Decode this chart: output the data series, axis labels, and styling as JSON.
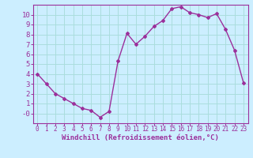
{
  "x": [
    0,
    1,
    2,
    3,
    4,
    5,
    6,
    7,
    8,
    9,
    10,
    11,
    12,
    13,
    14,
    15,
    16,
    17,
    18,
    19,
    20,
    21,
    22,
    23
  ],
  "y": [
    4.0,
    3.0,
    2.0,
    1.5,
    1.0,
    0.5,
    0.3,
    -0.4,
    0.2,
    5.3,
    8.1,
    7.0,
    7.8,
    8.8,
    9.4,
    10.6,
    10.8,
    10.2,
    10.0,
    9.7,
    10.1,
    8.5,
    6.4,
    3.1
  ],
  "line_color": "#9b309b",
  "marker": "D",
  "marker_size": 2,
  "bg_color": "#cceeff",
  "grid_color": "#aadddd",
  "xlabel": "Windchill (Refroidissement éolien,°C)",
  "xlim": [
    -0.5,
    23.5
  ],
  "ylim": [
    -1.0,
    11.0
  ],
  "yticks": [
    0,
    1,
    2,
    3,
    4,
    5,
    6,
    7,
    8,
    9,
    10
  ],
  "ytick_labels": [
    "-0",
    "1",
    "2",
    "3",
    "4",
    "5",
    "6",
    "7",
    "8",
    "9",
    "10"
  ],
  "xticks": [
    0,
    1,
    2,
    3,
    4,
    5,
    6,
    7,
    8,
    9,
    10,
    11,
    12,
    13,
    14,
    15,
    16,
    17,
    18,
    19,
    20,
    21,
    22,
    23
  ],
  "axis_color": "#9b309b",
  "tick_color": "#9b309b",
  "label_color": "#9b309b",
  "xlabel_fontsize": 6.5,
  "tick_fontsize_x": 5.5,
  "tick_fontsize_y": 6.5,
  "linewidth": 1.0
}
